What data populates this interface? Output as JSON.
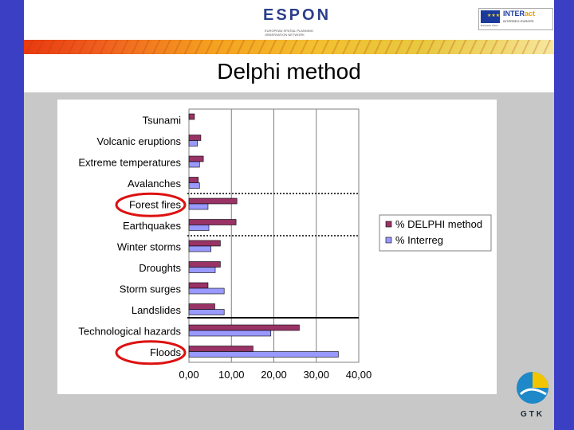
{
  "header": {
    "espon_text": "ESPON",
    "espon_sub": "EUROPEAN SPATIAL PLANNING OBSERVATION NETWORK",
    "interact_prefix": "INTER",
    "interact_suffix": "act",
    "interact_sub": "INTERREG EUROPE",
    "interact_cap": "European Union",
    "eu_stars": "★★★"
  },
  "title": "Delphi method",
  "footer": {
    "gtk": "GTK"
  },
  "colors": {
    "delphi": "#993366",
    "interreg": "#9999ff",
    "circle": "#dd1111",
    "frame": "#3b3fc4"
  },
  "chart_data": {
    "type": "bar",
    "orientation": "horizontal",
    "categories": [
      "Tsunami",
      "Volcanic eruptions",
      "Extreme temperatures",
      "Avalanches",
      "Forest fires",
      "Earthquakes",
      "Winter storms",
      "Droughts",
      "Storm surges",
      "Landslides",
      "Technological hazards",
      "Floods"
    ],
    "series": [
      {
        "name": "% DELPHI method",
        "values": [
          1.3,
          2.8,
          3.4,
          2.2,
          11.3,
          11.1,
          7.4,
          7.4,
          4.5,
          6.1,
          26.0,
          15.1
        ]
      },
      {
        "name": "% Interreg",
        "values": [
          0.0,
          2.0,
          2.5,
          2.5,
          4.5,
          4.7,
          5.2,
          6.2,
          8.3,
          8.3,
          19.3,
          35.2
        ]
      }
    ],
    "xticks": [
      "0,00",
      "10,00",
      "20,00",
      "30,00",
      "40,00"
    ],
    "xlim": [
      0,
      40
    ],
    "grid": true,
    "legend": "right",
    "highlighted": [
      "Forest fires",
      "Floods"
    ]
  }
}
